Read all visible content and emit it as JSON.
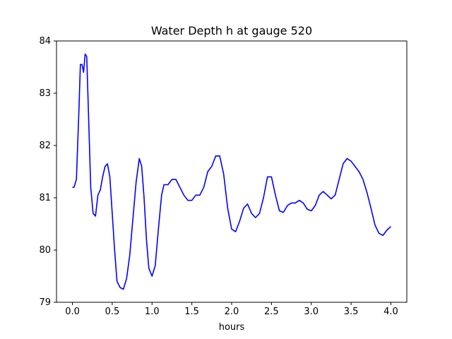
{
  "chart_data": {
    "type": "line",
    "title": "Water Depth h at gauge 520",
    "xlabel": "hours",
    "ylabel": "",
    "xlim": [
      -0.2,
      4.2
    ],
    "ylim": [
      79,
      84
    ],
    "x_ticks": [
      0.0,
      0.5,
      1.0,
      1.5,
      2.0,
      2.5,
      3.0,
      3.5,
      4.0
    ],
    "x_tick_labels": [
      "0.0",
      "0.5",
      "1.0",
      "1.5",
      "2.0",
      "2.5",
      "3.0",
      "3.5",
      "4.0"
    ],
    "y_ticks": [
      79,
      80,
      81,
      82,
      83,
      84
    ],
    "y_tick_labels": [
      "79",
      "80",
      "81",
      "82",
      "83",
      "84"
    ],
    "grid": false,
    "series": [
      {
        "color": "#0000ff",
        "points": [
          [
            0.0,
            81.2
          ],
          [
            0.02,
            81.2
          ],
          [
            0.05,
            81.35
          ],
          [
            0.08,
            82.6
          ],
          [
            0.1,
            83.55
          ],
          [
            0.12,
            83.55
          ],
          [
            0.14,
            83.4
          ],
          [
            0.16,
            83.75
          ],
          [
            0.18,
            83.7
          ],
          [
            0.2,
            82.7
          ],
          [
            0.23,
            81.2
          ],
          [
            0.26,
            80.7
          ],
          [
            0.29,
            80.65
          ],
          [
            0.32,
            81.05
          ],
          [
            0.35,
            81.15
          ],
          [
            0.38,
            81.4
          ],
          [
            0.41,
            81.6
          ],
          [
            0.44,
            81.65
          ],
          [
            0.47,
            81.4
          ],
          [
            0.5,
            80.7
          ],
          [
            0.53,
            80.0
          ],
          [
            0.56,
            79.4
          ],
          [
            0.6,
            79.28
          ],
          [
            0.64,
            79.25
          ],
          [
            0.68,
            79.45
          ],
          [
            0.72,
            79.9
          ],
          [
            0.76,
            80.6
          ],
          [
            0.8,
            81.3
          ],
          [
            0.84,
            81.75
          ],
          [
            0.87,
            81.6
          ],
          [
            0.9,
            81.0
          ],
          [
            0.93,
            80.2
          ],
          [
            0.96,
            79.65
          ],
          [
            1.0,
            79.5
          ],
          [
            1.04,
            79.7
          ],
          [
            1.08,
            80.4
          ],
          [
            1.12,
            81.05
          ],
          [
            1.15,
            81.25
          ],
          [
            1.2,
            81.25
          ],
          [
            1.25,
            81.35
          ],
          [
            1.3,
            81.35
          ],
          [
            1.35,
            81.2
          ],
          [
            1.4,
            81.05
          ],
          [
            1.45,
            80.95
          ],
          [
            1.5,
            80.95
          ],
          [
            1.55,
            81.05
          ],
          [
            1.6,
            81.05
          ],
          [
            1.65,
            81.2
          ],
          [
            1.7,
            81.5
          ],
          [
            1.75,
            81.6
          ],
          [
            1.8,
            81.8
          ],
          [
            1.85,
            81.8
          ],
          [
            1.9,
            81.45
          ],
          [
            1.95,
            80.8
          ],
          [
            2.0,
            80.4
          ],
          [
            2.05,
            80.35
          ],
          [
            2.1,
            80.55
          ],
          [
            2.15,
            80.8
          ],
          [
            2.2,
            80.88
          ],
          [
            2.25,
            80.7
          ],
          [
            2.3,
            80.62
          ],
          [
            2.35,
            80.7
          ],
          [
            2.4,
            81.0
          ],
          [
            2.45,
            81.4
          ],
          [
            2.5,
            81.4
          ],
          [
            2.55,
            81.05
          ],
          [
            2.6,
            80.75
          ],
          [
            2.65,
            80.72
          ],
          [
            2.7,
            80.85
          ],
          [
            2.75,
            80.9
          ],
          [
            2.8,
            80.9
          ],
          [
            2.85,
            80.95
          ],
          [
            2.9,
            80.9
          ],
          [
            2.95,
            80.78
          ],
          [
            3.0,
            80.75
          ],
          [
            3.05,
            80.85
          ],
          [
            3.1,
            81.05
          ],
          [
            3.15,
            81.12
          ],
          [
            3.2,
            81.05
          ],
          [
            3.25,
            80.98
          ],
          [
            3.3,
            81.05
          ],
          [
            3.35,
            81.35
          ],
          [
            3.4,
            81.65
          ],
          [
            3.45,
            81.75
          ],
          [
            3.5,
            81.7
          ],
          [
            3.55,
            81.6
          ],
          [
            3.6,
            81.5
          ],
          [
            3.65,
            81.35
          ],
          [
            3.7,
            81.1
          ],
          [
            3.75,
            80.8
          ],
          [
            3.8,
            80.48
          ],
          [
            3.85,
            80.32
          ],
          [
            3.9,
            80.28
          ],
          [
            3.95,
            80.38
          ],
          [
            4.0,
            80.45
          ]
        ]
      }
    ]
  }
}
